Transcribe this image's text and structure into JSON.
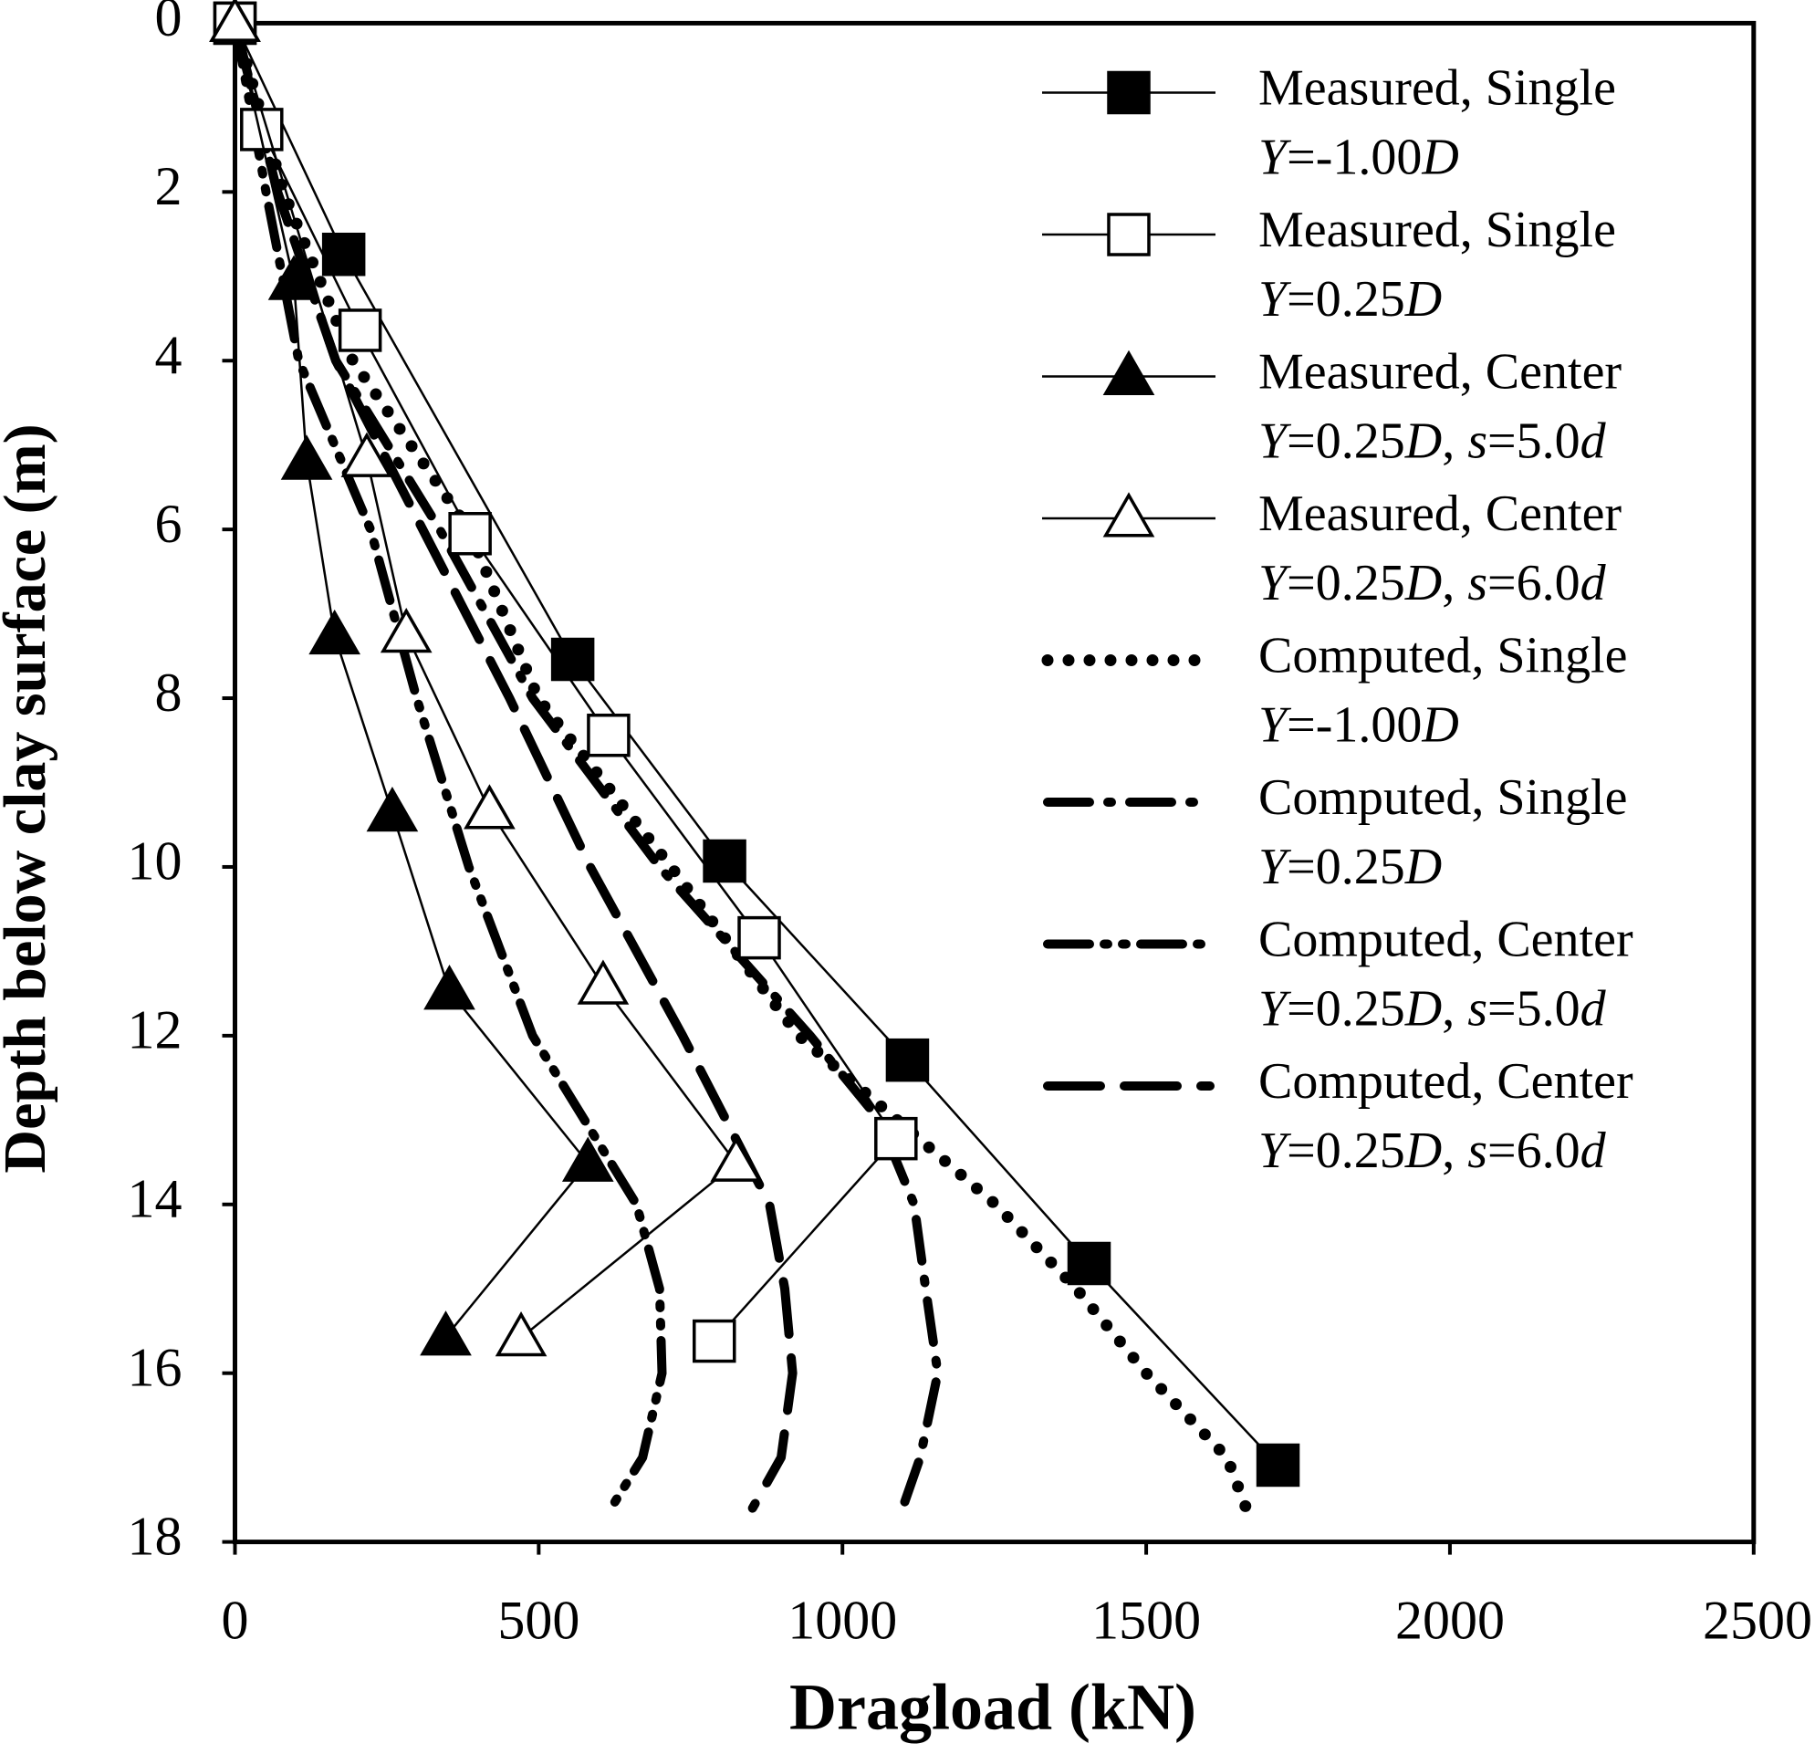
{
  "chart_data": {
    "type": "line",
    "x_label": "Dragload (kN)",
    "y_label": "Depth below clay surface (m)",
    "xlim": [
      0,
      2500
    ],
    "xticks": [
      0,
      500,
      1000,
      1500,
      2000,
      2500
    ],
    "ylim": [
      0,
      18
    ],
    "yticks": [
      0,
      2,
      4,
      6,
      8,
      10,
      12,
      14,
      16,
      18
    ],
    "y_reversed": true,
    "legend": "upper right",
    "color": "#000000",
    "series": [
      {
        "name": "Measured, Single",
        "condition": "Y=-1.00D",
        "marker": "filled-square",
        "style": "solid",
        "x": [
          0,
          179,
          556,
          806,
          1107,
          1406,
          1717
        ],
        "y": [
          0,
          2.74,
          7.54,
          9.93,
          12.29,
          14.7,
          17.09
        ]
      },
      {
        "name": "Measured, Single",
        "condition": "Y=0.25D",
        "marker": "open-square",
        "style": "solid",
        "x": [
          0,
          44,
          206,
          387,
          615,
          863,
          1088,
          789
        ],
        "y": [
          0,
          1.26,
          3.64,
          6.05,
          8.44,
          10.84,
          13.22,
          15.62
        ]
      },
      {
        "name": "Measured, Center",
        "condition": "Y=0.25D, s=5.0d",
        "marker": "filled-triangle",
        "style": "solid",
        "x": [
          0,
          97,
          118,
          164,
          259,
          353,
          581,
          347
        ],
        "y": [
          0,
          3.06,
          5.19,
          7.26,
          9.36,
          11.47,
          13.51,
          15.57
        ]
      },
      {
        "name": "Measured, Center",
        "condition": "Y=0.25D, s=6.0d",
        "marker": "open-triangle",
        "style": "solid",
        "x": [
          0,
          217,
          282,
          419,
          606,
          825,
          471
        ],
        "y": [
          0,
          5.16,
          7.24,
          9.33,
          11.41,
          13.51,
          15.58
        ]
      },
      {
        "name": "Computed, Single",
        "condition": "Y=-1.00D",
        "marker": "none",
        "style": "dotted",
        "x": [
          0,
          80,
          194,
          385,
          499,
          718,
          928,
          1252,
          1385,
          1500,
          1633,
          1675
        ],
        "y": [
          0,
          2,
          4,
          6,
          8,
          10,
          12,
          14,
          15,
          16,
          17,
          17.8
        ]
      },
      {
        "name": "Computed, Single",
        "condition": "Y=0.25D",
        "marker": "none",
        "style": "dash-dot",
        "x": [
          0,
          70,
          166,
          337,
          490,
          699,
          947,
          1061,
          1118,
          1137,
          1157,
          1128,
          1099
        ],
        "y": [
          0,
          2,
          4,
          6,
          8,
          10,
          12,
          13,
          14,
          15,
          16,
          17,
          17.6
        ]
      },
      {
        "name": "Computed, Center",
        "condition": "Y=0.25D, s=5.0d",
        "marker": "none",
        "style": "dash-dot-dot",
        "x": [
          0,
          51,
          105,
          223,
          299,
          385,
          490,
          661,
          699,
          703,
          671,
          619
        ],
        "y": [
          0,
          2,
          4,
          6,
          8,
          10,
          12,
          14,
          15,
          16,
          17,
          17.6
        ]
      },
      {
        "name": "Computed, Center",
        "condition": "Y=0.25D, s=6.0d",
        "marker": "none",
        "style": "long-dash",
        "x": [
          0,
          70,
          166,
          309,
          452,
          585,
          737,
          880,
          905,
          918,
          899,
          852
        ],
        "y": [
          0,
          2,
          4,
          6,
          8,
          10,
          12,
          14,
          15,
          16,
          17,
          17.6
        ]
      }
    ]
  }
}
